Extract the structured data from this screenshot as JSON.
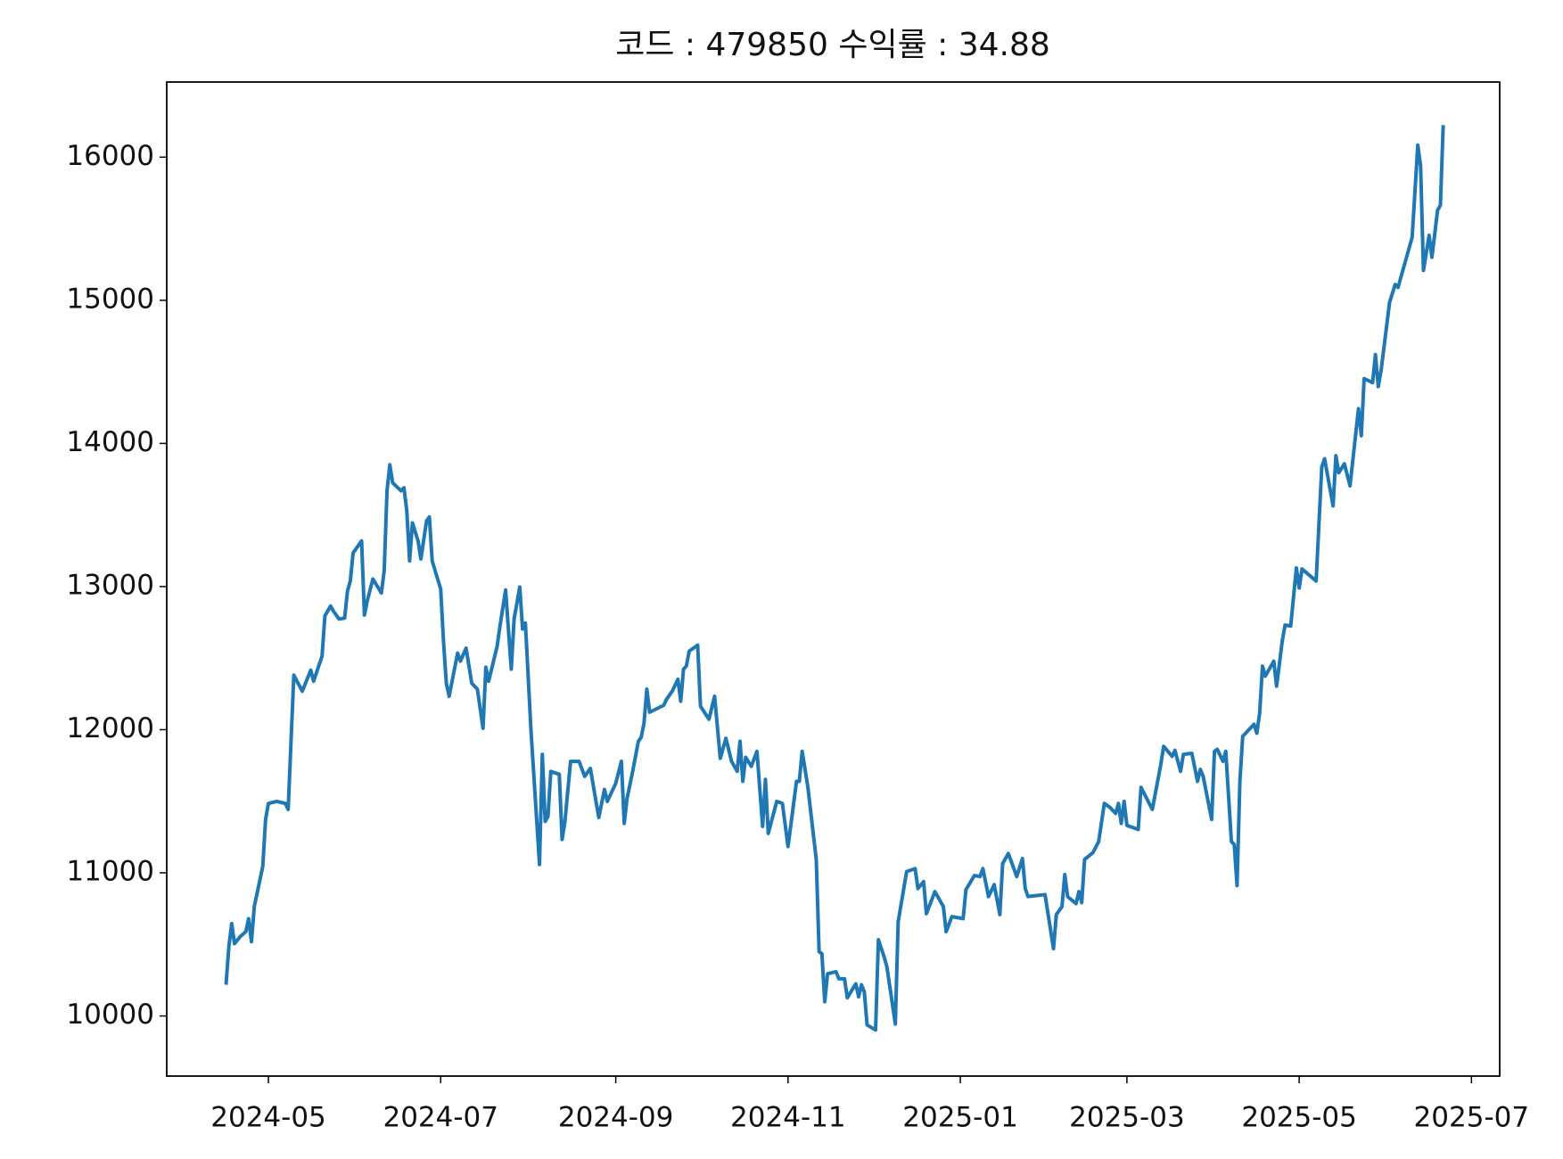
{
  "chart_data": {
    "type": "line",
    "title": "코드 : 479850 수익률 : 34.88",
    "x": [
      "2024-04-16",
      "2024-04-17",
      "2024-04-18",
      "2024-04-19",
      "2024-04-21",
      "2024-04-23",
      "2024-04-24",
      "2024-04-25",
      "2024-04-26",
      "2024-04-29",
      "2024-04-30",
      "2024-05-01",
      "2024-05-04",
      "2024-05-07",
      "2024-05-08",
      "2024-05-10",
      "2024-05-13",
      "2024-05-16",
      "2024-05-17",
      "2024-05-20",
      "2024-05-21",
      "2024-05-23",
      "2024-05-24",
      "2024-05-26",
      "2024-05-28",
      "2024-05-29",
      "2024-05-30",
      "2024-05-31",
      "2024-06-03",
      "2024-06-04",
      "2024-06-05",
      "2024-06-07",
      "2024-06-10",
      "2024-06-11",
      "2024-06-12",
      "2024-06-13",
      "2024-06-14",
      "2024-06-17",
      "2024-06-18",
      "2024-06-19",
      "2024-06-20",
      "2024-06-21",
      "2024-06-23",
      "2024-06-24",
      "2024-06-26",
      "2024-06-27",
      "2024-06-28",
      "2024-07-01",
      "2024-07-02",
      "2024-07-03",
      "2024-07-04",
      "2024-07-07",
      "2024-07-08",
      "2024-07-10",
      "2024-07-12",
      "2024-07-14",
      "2024-07-16",
      "2024-07-17",
      "2024-07-18",
      "2024-07-21",
      "2024-07-22",
      "2024-07-24",
      "2024-07-26",
      "2024-07-27",
      "2024-07-29",
      "2024-07-30",
      "2024-07-31",
      "2024-08-02",
      "2024-08-05",
      "2024-08-06",
      "2024-08-07",
      "2024-08-08",
      "2024-08-09",
      "2024-08-12",
      "2024-08-13",
      "2024-08-14",
      "2024-08-16",
      "2024-08-19",
      "2024-08-21",
      "2024-08-23",
      "2024-08-25",
      "2024-08-26",
      "2024-08-28",
      "2024-08-29",
      "2024-09-01",
      "2024-09-03",
      "2024-09-04",
      "2024-09-05",
      "2024-09-07",
      "2024-09-09",
      "2024-09-10",
      "2024-09-11",
      "2024-09-12",
      "2024-09-13",
      "2024-09-18",
      "2024-09-19",
      "2024-09-21",
      "2024-09-23",
      "2024-09-24",
      "2024-09-25",
      "2024-09-26",
      "2024-09-27",
      "2024-09-30",
      "2024-10-01",
      "2024-10-04",
      "2024-10-06",
      "2024-10-08",
      "2024-10-10",
      "2024-10-12",
      "2024-10-14",
      "2024-10-15",
      "2024-10-16",
      "2024-10-17",
      "2024-10-19",
      "2024-10-21",
      "2024-10-23",
      "2024-10-24",
      "2024-10-25",
      "2024-10-28",
      "2024-10-30",
      "2024-11-01",
      "2024-11-04",
      "2024-11-05",
      "2024-11-06",
      "2024-11-08",
      "2024-11-11",
      "2024-11-12",
      "2024-11-13",
      "2024-11-14",
      "2024-11-15",
      "2024-11-18",
      "2024-11-19",
      "2024-11-21",
      "2024-11-22",
      "2024-11-25",
      "2024-11-26",
      "2024-11-27",
      "2024-11-28",
      "2024-11-29",
      "2024-12-02",
      "2024-12-03",
      "2024-12-05",
      "2024-12-06",
      "2024-12-09",
      "2024-12-10",
      "2024-12-13",
      "2024-12-16",
      "2024-12-17",
      "2024-12-19",
      "2024-12-20",
      "2024-12-23",
      "2024-12-26",
      "2024-12-27",
      "2024-12-29",
      "2025-01-02",
      "2025-01-03",
      "2025-01-06",
      "2025-01-08",
      "2025-01-09",
      "2025-01-11",
      "2025-01-13",
      "2025-01-15",
      "2025-01-16",
      "2025-01-18",
      "2025-01-21",
      "2025-01-23",
      "2025-01-24",
      "2025-01-25",
      "2025-01-31",
      "2025-02-03",
      "2025-02-04",
      "2025-02-06",
      "2025-02-07",
      "2025-02-08",
      "2025-02-11",
      "2025-02-12",
      "2025-02-13",
      "2025-02-14",
      "2025-02-17",
      "2025-02-19",
      "2025-02-21",
      "2025-02-23",
      "2025-02-25",
      "2025-02-26",
      "2025-02-27",
      "2025-02-28",
      "2025-03-01",
      "2025-03-05",
      "2025-03-06",
      "2025-03-08",
      "2025-03-10",
      "2025-03-11",
      "2025-03-13",
      "2025-03-14",
      "2025-03-17",
      "2025-03-18",
      "2025-03-20",
      "2025-03-21",
      "2025-03-24",
      "2025-03-26",
      "2025-03-27",
      "2025-03-28",
      "2025-03-31",
      "2025-04-01",
      "2025-04-02",
      "2025-04-04",
      "2025-04-05",
      "2025-04-07",
      "2025-04-08",
      "2025-04-09",
      "2025-04-10",
      "2025-04-11",
      "2025-04-15",
      "2025-04-16",
      "2025-04-17",
      "2025-04-18",
      "2025-04-19",
      "2025-04-22",
      "2025-04-23",
      "2025-04-25",
      "2025-04-26",
      "2025-04-28",
      "2025-04-30",
      "2025-05-01",
      "2025-05-02",
      "2025-05-07",
      "2025-05-09",
      "2025-05-10",
      "2025-05-13",
      "2025-05-14",
      "2025-05-15",
      "2025-05-17",
      "2025-05-19",
      "2025-05-22",
      "2025-05-23",
      "2025-05-24",
      "2025-05-27",
      "2025-05-28",
      "2025-05-29",
      "2025-05-30",
      "2025-06-02",
      "2025-06-04",
      "2025-06-05",
      "2025-06-10",
      "2025-06-12",
      "2025-06-13",
      "2025-06-14",
      "2025-06-16",
      "2025-06-17",
      "2025-06-19",
      "2025-06-20",
      "2025-06-21"
    ],
    "series": [
      {
        "name": "479850",
        "color": "#1f77b4",
        "values": [
          10218,
          10484,
          10645,
          10505,
          10554,
          10589,
          10680,
          10519,
          10764,
          11044,
          11373,
          11485,
          11499,
          11485,
          11443,
          12381,
          12269,
          12416,
          12339,
          12514,
          12794,
          12864,
          12829,
          12773,
          12780,
          12969,
          13039,
          13235,
          13319,
          12801,
          12899,
          13053,
          12955,
          13109,
          13669,
          13851,
          13725,
          13669,
          13690,
          13529,
          13179,
          13445,
          13319,
          13193,
          13459,
          13487,
          13179,
          12983,
          12619,
          12325,
          12234,
          12535,
          12479,
          12570,
          12325,
          12283,
          12010,
          12437,
          12339,
          12584,
          12724,
          12976,
          12423,
          12773,
          12997,
          12703,
          12745,
          11989,
          11058,
          11828,
          11359,
          11394,
          11709,
          11688,
          11233,
          11359,
          11779,
          11779,
          11674,
          11730,
          11499,
          11387,
          11583,
          11499,
          11625,
          11779,
          11345,
          11520,
          11709,
          11919,
          11947,
          12045,
          12283,
          12122,
          12171,
          12213,
          12269,
          12353,
          12199,
          12423,
          12444,
          12549,
          12591,
          12164,
          12073,
          12234,
          11800,
          11940,
          11779,
          11709,
          11919,
          11639,
          11807,
          11744,
          11849,
          11324,
          11653,
          11275,
          11499,
          11485,
          11184,
          11639,
          11639,
          11849,
          11604,
          11093,
          10449,
          10435,
          10099,
          10295,
          10309,
          10260,
          10260,
          10127,
          10225,
          10134,
          10218,
          10169,
          9937,
          9902,
          10533,
          10414,
          10344,
          9944,
          10659,
          11009,
          11030,
          10890,
          10939,
          10715,
          10869,
          10764,
          10589,
          10694,
          10680,
          10883,
          10981,
          10974,
          11030,
          10834,
          10918,
          10708,
          11065,
          11135,
          10974,
          11100,
          10890,
          10834,
          10848,
          10470,
          10708,
          10764,
          10988,
          10834,
          10785,
          10869,
          10792,
          11093,
          11142,
          11219,
          11485,
          11457,
          11415,
          11485,
          11345,
          11499,
          11331,
          11303,
          11597,
          11520,
          11443,
          11548,
          11758,
          11884,
          11814,
          11856,
          11709,
          11828,
          11835,
          11639,
          11723,
          11674,
          11373,
          11849,
          11863,
          11779,
          11849,
          11219,
          11198,
          10911,
          11639,
          11954,
          12038,
          11975,
          12115,
          12444,
          12374,
          12479,
          12304,
          12619,
          12731,
          12724,
          13130,
          12990,
          13123,
          13039,
          13837,
          13893,
          13564,
          13914,
          13795,
          13858,
          13704,
          14243,
          14054,
          14453,
          14425,
          14621,
          14397,
          14509,
          14985,
          15111,
          15090,
          15440,
          16084,
          15937,
          15209,
          15454,
          15300,
          15629,
          15664,
          16224
        ]
      }
    ],
    "xlim": [
      "2024-03-26",
      "2025-07-11"
    ],
    "xticks": [
      {
        "value": "2024-05-01",
        "label": "2024-05"
      },
      {
        "value": "2024-07-01",
        "label": "2024-07"
      },
      {
        "value": "2024-09-01",
        "label": "2024-09"
      },
      {
        "value": "2024-11-01",
        "label": "2024-11"
      },
      {
        "value": "2025-01-01",
        "label": "2025-01"
      },
      {
        "value": "2025-03-01",
        "label": "2025-03"
      },
      {
        "value": "2025-05-01",
        "label": "2025-05"
      },
      {
        "value": "2025-07-01",
        "label": "2025-07"
      }
    ],
    "ylim": [
      9580,
      16525
    ],
    "yticks": [
      10000,
      11000,
      12000,
      13000,
      14000,
      15000,
      16000
    ],
    "grid": false
  }
}
